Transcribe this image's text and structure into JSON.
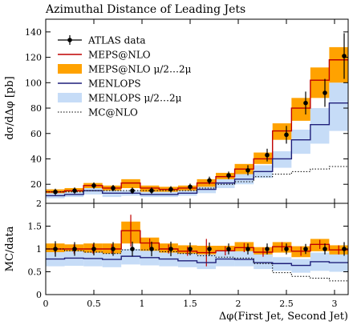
{
  "chart_data": [
    {
      "type": "line",
      "title": "Azimuthal Distance of Leading Jets",
      "ylabel": "dσ/dΔφ [pb]",
      "xlim": [
        0,
        3.14159
      ],
      "ylim": [
        5,
        150
      ],
      "yticks": [
        20,
        40,
        60,
        80,
        100,
        120,
        140
      ],
      "legend_position": "top-left",
      "bin_edges": [
        0,
        0.196,
        0.393,
        0.589,
        0.785,
        0.982,
        1.178,
        1.374,
        1.571,
        1.767,
        1.963,
        2.16,
        2.356,
        2.553,
        2.749,
        2.945,
        3.142
      ],
      "x": [
        0.1,
        0.3,
        0.5,
        0.7,
        0.9,
        1.1,
        1.3,
        1.5,
        1.7,
        1.9,
        2.1,
        2.3,
        2.5,
        2.7,
        2.9,
        3.1
      ],
      "series": [
        {
          "name": "ATLAS data",
          "style": "points",
          "color": "#000000",
          "values": [
            14,
            15,
            19,
            17,
            15,
            15,
            16,
            18,
            23,
            27,
            31,
            43,
            59,
            84,
            92,
            121
          ],
          "errors": [
            2.5,
            2.5,
            2.5,
            2.5,
            2.5,
            2.5,
            2.5,
            2.5,
            3,
            3,
            4,
            5,
            7,
            9,
            11,
            18
          ]
        },
        {
          "name": "MEPS@NLO",
          "style": "step",
          "color": "#bf0000",
          "values": [
            14,
            15,
            19,
            17,
            21,
            17,
            16,
            17,
            21,
            26,
            32,
            40,
            62,
            80,
            102,
            118
          ]
        },
        {
          "name": "MEPS@NLO μ/2…2μ",
          "style": "band",
          "color": "#ffa200",
          "low": [
            12,
            13,
            16,
            15,
            17,
            14,
            14,
            15,
            18,
            23,
            28,
            36,
            55,
            70,
            88,
            100
          ],
          "high": [
            16,
            17,
            21,
            19,
            24,
            19,
            18,
            19,
            24,
            29,
            36,
            45,
            68,
            88,
            112,
            128
          ]
        },
        {
          "name": "MENLOPS",
          "style": "step",
          "color": "#1f1f7a",
          "values": [
            11,
            12,
            15,
            13,
            13,
            12,
            12,
            13,
            16,
            21,
            24,
            30,
            40,
            55,
            67,
            84
          ]
        },
        {
          "name": "MENLOPS μ/2…2μ",
          "style": "band",
          "color": "#c6dcf7",
          "low": [
            9,
            10,
            12,
            10,
            11,
            10,
            10,
            11,
            13,
            17,
            20,
            25,
            33,
            44,
            52,
            62
          ],
          "high": [
            13,
            14,
            17,
            15,
            15,
            14,
            14,
            15,
            18,
            24,
            28,
            35,
            46,
            63,
            80,
            100
          ]
        },
        {
          "name": "MC@NLO",
          "style": "dotted",
          "color": "#000000",
          "values": [
            14,
            14,
            15,
            15,
            15,
            15,
            15,
            15,
            17,
            20,
            22,
            26,
            28,
            30,
            32,
            34
          ]
        }
      ]
    },
    {
      "type": "line",
      "ylabel": "MC/data",
      "xlabel": "Δφ(First Jet, Second Jet)",
      "xlim": [
        0,
        3.14159
      ],
      "ylim": [
        0,
        2
      ],
      "yticks": [
        0,
        0.5,
        1,
        1.5,
        2
      ],
      "xticks": [
        0,
        0.5,
        1,
        1.5,
        2,
        2.5,
        3
      ],
      "bin_edges": [
        0,
        0.196,
        0.393,
        0.589,
        0.785,
        0.982,
        1.178,
        1.374,
        1.571,
        1.767,
        1.963,
        2.16,
        2.356,
        2.553,
        2.749,
        2.945,
        3.142
      ],
      "x": [
        0.1,
        0.3,
        0.5,
        0.7,
        0.9,
        1.1,
        1.3,
        1.5,
        1.7,
        1.9,
        2.1,
        2.3,
        2.5,
        2.7,
        2.9,
        3.1
      ],
      "series": [
        {
          "name": "ATLAS data",
          "style": "points",
          "color": "#000000",
          "values": [
            1,
            1,
            1,
            1,
            1,
            1,
            1,
            1,
            1,
            1,
            1,
            1,
            1,
            1,
            1,
            1
          ],
          "errors": [
            0.17,
            0.15,
            0.14,
            0.15,
            0.16,
            0.16,
            0.16,
            0.14,
            0.14,
            0.12,
            0.12,
            0.12,
            0.12,
            0.11,
            0.12,
            0.15
          ]
        },
        {
          "name": "MEPS@NLO",
          "style": "step",
          "color": "#bf0000",
          "values": [
            1.0,
            1.0,
            1.0,
            1.0,
            1.4,
            1.13,
            1.0,
            0.95,
            0.92,
            0.96,
            1.03,
            0.93,
            1.05,
            0.95,
            1.1,
            0.98
          ],
          "errors": [
            0.1,
            0.1,
            0.1,
            0.1,
            0.35,
            0.1,
            0.1,
            0.1,
            0.3,
            0.1,
            0.1,
            0.1,
            0.1,
            0.1,
            0.1,
            0.1
          ]
        },
        {
          "name": "MEPS@NLO μ/2…2μ",
          "style": "band",
          "color": "#ffa200",
          "low": [
            0.88,
            0.88,
            0.86,
            0.85,
            1.12,
            0.95,
            0.86,
            0.82,
            0.8,
            0.84,
            0.88,
            0.82,
            0.92,
            0.82,
            0.95,
            0.85
          ],
          "high": [
            1.12,
            1.1,
            1.12,
            1.12,
            1.6,
            1.25,
            1.12,
            1.08,
            1.07,
            1.07,
            1.15,
            1.04,
            1.15,
            1.06,
            1.22,
            1.08
          ]
        },
        {
          "name": "MENLOPS",
          "style": "step",
          "color": "#1f1f7a",
          "values": [
            0.78,
            0.8,
            0.79,
            0.77,
            0.84,
            0.81,
            0.78,
            0.74,
            0.7,
            0.78,
            0.77,
            0.7,
            0.68,
            0.64,
            0.72,
            0.7
          ]
        },
        {
          "name": "MENLOPS μ/2…2μ",
          "style": "band",
          "color": "#c6dcf7",
          "low": [
            0.62,
            0.63,
            0.62,
            0.6,
            0.66,
            0.64,
            0.62,
            0.6,
            0.56,
            0.62,
            0.62,
            0.56,
            0.52,
            0.48,
            0.52,
            0.5
          ],
          "high": [
            0.93,
            0.95,
            0.92,
            0.9,
            1.0,
            0.96,
            0.92,
            0.9,
            0.88,
            0.96,
            0.95,
            0.88,
            0.82,
            0.78,
            0.92,
            0.88
          ]
        },
        {
          "name": "MC@NLO",
          "style": "dotted",
          "color": "#000000",
          "values": [
            1.0,
            0.96,
            0.93,
            0.9,
            0.98,
            0.98,
            0.94,
            0.9,
            0.85,
            0.82,
            0.8,
            0.68,
            0.48,
            0.4,
            0.36,
            0.3
          ]
        }
      ]
    }
  ]
}
